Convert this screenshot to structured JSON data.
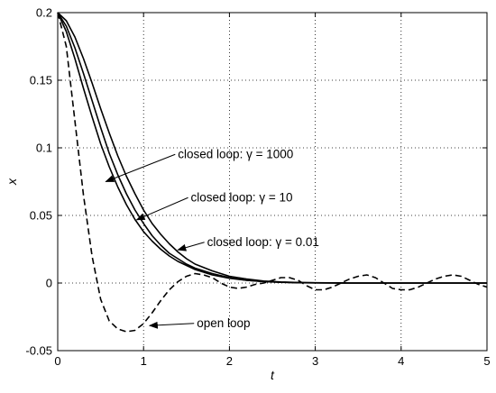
{
  "chart_data": {
    "type": "line",
    "title": "",
    "xlabel": "t",
    "ylabel": "x",
    "xlim": [
      0,
      5
    ],
    "ylim": [
      -0.05,
      0.2
    ],
    "xticks": [
      0,
      1,
      2,
      3,
      4,
      5
    ],
    "xtick_labels": [
      "0",
      "1",
      "2",
      "3",
      "4",
      "5"
    ],
    "yticks": [
      -0.05,
      0,
      0.05,
      0.1,
      0.15,
      0.2
    ],
    "ytick_labels": [
      "-0.05",
      "0",
      "0.05",
      "0.1",
      "0.15",
      "0.2"
    ],
    "grid": true,
    "legend": "none",
    "series": [
      {
        "style": "solid",
        "color": "#000000",
        "x": [
          0,
          0.1,
          0.2,
          0.3,
          0.4,
          0.5,
          0.6,
          0.7,
          0.8,
          0.9,
          1.0,
          1.1,
          1.2,
          1.3,
          1.4,
          1.5,
          1.6,
          1.8,
          2.0,
          2.2,
          2.4,
          2.6,
          2.8,
          3.0,
          3.4,
          3.8,
          4.2,
          4.6,
          5.0
        ],
        "y": [
          0.2,
          0.194,
          0.182,
          0.166,
          0.148,
          0.129,
          0.111,
          0.094,
          0.079,
          0.066,
          0.054,
          0.044,
          0.036,
          0.029,
          0.023,
          0.018,
          0.014,
          0.009,
          0.005,
          0.003,
          0.0015,
          0.0008,
          0.0004,
          0.0002,
          0,
          0,
          0,
          0,
          0
        ]
      },
      {
        "style": "solid",
        "color": "#000000",
        "x": [
          0,
          0.1,
          0.2,
          0.3,
          0.4,
          0.5,
          0.6,
          0.7,
          0.8,
          0.9,
          1.0,
          1.1,
          1.2,
          1.3,
          1.4,
          1.5,
          1.6,
          1.8,
          2.0,
          2.2,
          2.4,
          2.6,
          2.8,
          3.0,
          3.4,
          3.8,
          4.2,
          4.6,
          5.0
        ],
        "y": [
          0.2,
          0.19,
          0.174,
          0.155,
          0.135,
          0.115,
          0.096,
          0.08,
          0.066,
          0.054,
          0.044,
          0.035,
          0.028,
          0.022,
          0.018,
          0.014,
          0.011,
          0.007,
          0.004,
          0.002,
          0.0012,
          0.0006,
          0.0003,
          0.0001,
          0,
          0,
          0,
          0,
          0
        ]
      },
      {
        "style": "solid",
        "color": "#000000",
        "x": [
          0,
          0.1,
          0.2,
          0.3,
          0.4,
          0.5,
          0.6,
          0.7,
          0.8,
          0.9,
          1.0,
          1.1,
          1.2,
          1.3,
          1.4,
          1.5,
          1.6,
          1.8,
          2.0,
          2.2,
          2.4,
          2.6,
          2.8,
          3.0,
          3.4,
          3.8,
          4.2,
          4.6,
          5.0
        ],
        "y": [
          0.2,
          0.186,
          0.166,
          0.144,
          0.123,
          0.103,
          0.086,
          0.071,
          0.058,
          0.047,
          0.038,
          0.031,
          0.025,
          0.02,
          0.016,
          0.013,
          0.01,
          0.006,
          0.0035,
          0.002,
          0.001,
          0.0005,
          0.0002,
          0.0001,
          0,
          0,
          0,
          0,
          0
        ]
      },
      {
        "style": "dashed",
        "color": "#000000",
        "x": [
          0,
          0.1,
          0.2,
          0.3,
          0.4,
          0.5,
          0.6,
          0.7,
          0.8,
          0.9,
          1.0,
          1.1,
          1.2,
          1.3,
          1.4,
          1.5,
          1.6,
          1.7,
          1.8,
          1.9,
          2.0,
          2.1,
          2.2,
          2.3,
          2.4,
          2.5,
          2.6,
          2.7,
          2.8,
          2.9,
          3.0,
          3.1,
          3.2,
          3.3,
          3.4,
          3.5,
          3.6,
          3.7,
          3.8,
          3.9,
          4.0,
          4.1,
          4.2,
          4.3,
          4.4,
          4.5,
          4.6,
          4.7,
          4.8,
          4.9,
          5.0
        ],
        "y": [
          0.2,
          0.175,
          0.12,
          0.065,
          0.02,
          -0.012,
          -0.028,
          -0.034,
          -0.036,
          -0.035,
          -0.03,
          -0.022,
          -0.013,
          -0.005,
          0.001,
          0.005,
          0.007,
          0.006,
          0.004,
          0.0,
          -0.003,
          -0.004,
          -0.003,
          -0.001,
          0.0,
          0.002,
          0.004,
          0.004,
          0.002,
          -0.002,
          -0.005,
          -0.005,
          -0.003,
          0.0,
          0.003,
          0.005,
          0.006,
          0.004,
          0.0,
          -0.004,
          -0.005,
          -0.005,
          -0.003,
          0.0,
          0.003,
          0.005,
          0.006,
          0.005,
          0.002,
          -0.001,
          -0.003
        ]
      }
    ],
    "annotations": [
      {
        "text": "closed loop: γ = 1000",
        "text_at": [
          1.4,
          0.0925
        ],
        "arrow_to": [
          0.56,
          0.075
        ]
      },
      {
        "text": "closed loop: γ = 10",
        "text_at": [
          1.55,
          0.0605
        ],
        "arrow_to": [
          0.92,
          0.0468
        ]
      },
      {
        "text": "closed loop: γ = 0.01",
        "text_at": [
          1.74,
          0.0275
        ],
        "arrow_to": [
          1.4,
          0.0245
        ]
      },
      {
        "text": "open loop",
        "text_at": [
          1.62,
          -0.0325
        ],
        "arrow_to": [
          1.07,
          -0.0315
        ]
      }
    ]
  }
}
